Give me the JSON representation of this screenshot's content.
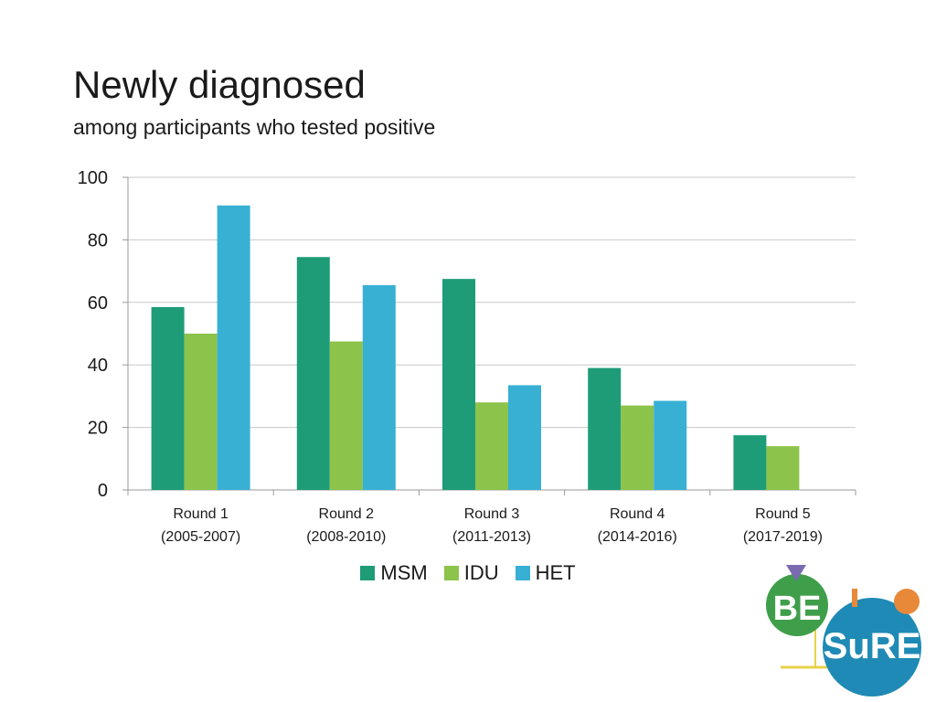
{
  "page": {
    "title": "Newly diagnosed",
    "subtitle": "among participants who tested positive"
  },
  "chart_data": {
    "type": "bar",
    "title": "Newly diagnosed",
    "subtitle": "among participants who tested positive",
    "xlabel": "",
    "ylabel": "",
    "ylim": [
      0,
      100
    ],
    "yticks": [
      0,
      20,
      40,
      60,
      80,
      100
    ],
    "grid": true,
    "legend_position": "bottom",
    "categories": [
      [
        "Round 1",
        "(2005-2007)"
      ],
      [
        "Round 2",
        "(2008-2010)"
      ],
      [
        "Round 3",
        "(2011-2013)"
      ],
      [
        "Round 4",
        "(2014-2016)"
      ],
      [
        "Round 5",
        "(2017-2019)"
      ]
    ],
    "series": [
      {
        "name": "MSM",
        "color": "#1e9c78",
        "values": [
          58.5,
          74.5,
          67.5,
          39,
          17.5
        ]
      },
      {
        "name": "IDU",
        "color": "#8cc34a",
        "values": [
          50,
          47.5,
          28,
          27,
          14
        ]
      },
      {
        "name": "HET",
        "color": "#38b0d4",
        "values": [
          91,
          65.5,
          33.5,
          28.5,
          null
        ]
      }
    ]
  },
  "logo": {
    "top_text": "BE",
    "bottom_text": "SuRE",
    "colors": {
      "green": "#3f9e4a",
      "blue": "#1f8ab5",
      "orange": "#e8893a",
      "purple": "#7a6bb0",
      "yellow": "#e8d24a"
    }
  }
}
